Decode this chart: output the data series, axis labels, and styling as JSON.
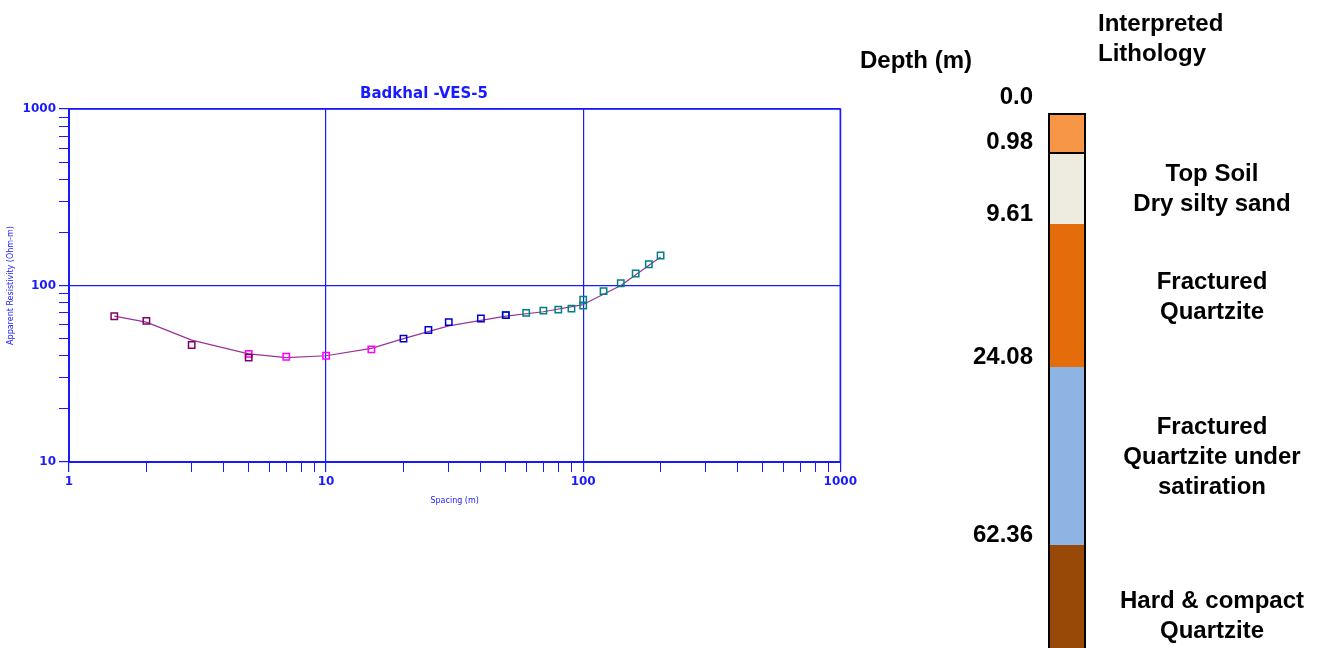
{
  "chart_data": [
    {
      "type": "scatter",
      "title": "Badkhal -VES-5",
      "xlabel": "Spacing (m)",
      "ylabel": "Apparent Resistivity (Ohm-m)",
      "log": "xy",
      "grid": true,
      "marker": "square",
      "legend": false,
      "xlim": [
        1,
        1000
      ],
      "ylim": [
        10,
        1000
      ],
      "xticks": [
        1,
        {
          "value": 2,
          "label": null
        },
        {
          "value": 3,
          "label": null
        },
        {
          "value": 4,
          "label": null
        },
        {
          "value": 5,
          "label": null
        },
        {
          "value": 6,
          "label": null
        },
        {
          "value": 7,
          "label": null
        },
        {
          "value": 8,
          "label": null
        },
        {
          "value": 9,
          "label": null
        },
        10,
        {
          "value": 20,
          "label": null
        },
        {
          "value": 30,
          "label": null
        },
        {
          "value": 40,
          "label": null
        },
        {
          "value": 50,
          "label": null
        },
        {
          "value": 60,
          "label": null
        },
        {
          "value": 70,
          "label": null
        },
        {
          "value": 80,
          "label": null
        },
        {
          "value": 90,
          "label": null
        },
        100,
        {
          "value": 200,
          "label": null
        },
        {
          "value": 300,
          "label": null
        },
        {
          "value": 400,
          "label": null
        },
        {
          "value": 500,
          "label": null
        },
        {
          "value": 600,
          "label": null
        },
        {
          "value": 700,
          "label": null
        },
        {
          "value": 800,
          "label": null
        },
        {
          "value": 900,
          "label": null
        },
        1000
      ],
      "yticks": [
        10,
        {
          "value": 20,
          "label": null
        },
        {
          "value": 30,
          "label": null
        },
        {
          "value": 40,
          "label": null
        },
        {
          "value": 50,
          "label": null
        },
        {
          "value": 60,
          "label": null
        },
        {
          "value": 70,
          "label": null
        },
        {
          "value": 80,
          "label": null
        },
        {
          "value": 90,
          "label": null
        },
        100,
        {
          "value": 200,
          "label": null
        },
        {
          "value": 300,
          "label": null
        },
        {
          "value": 400,
          "label": null
        },
        {
          "value": 500,
          "label": null
        },
        {
          "value": 600,
          "label": null
        },
        {
          "value": 700,
          "label": null
        },
        {
          "value": 800,
          "label": null
        },
        {
          "value": 900,
          "label": null
        },
        1000
      ],
      "series": [
        {
          "type": "line",
          "marker": "none",
          "color": "#993399",
          "x": [
            1.5,
            2,
            3,
            5,
            7,
            10,
            15,
            20,
            30,
            50,
            70,
            100,
            140,
            200
          ],
          "values": [
            67,
            62,
            49,
            41,
            39,
            40,
            44,
            50,
            59,
            67,
            71,
            78,
            100,
            145
          ]
        },
        {
          "color": "#800060",
          "x": [
            1.5,
            2,
            3,
            5
          ],
          "values": [
            67,
            63,
            46,
            39
          ]
        },
        {
          "color": "#ff00ff",
          "x": [
            5,
            7,
            10,
            15
          ],
          "values": [
            41,
            39.5,
            40,
            43.5
          ]
        },
        {
          "color": "#0000cc",
          "x": [
            20,
            25,
            30,
            40,
            50
          ],
          "values": [
            50,
            56,
            62,
            65,
            68
          ]
        },
        {
          "color": "#008080",
          "x": [
            50,
            60,
            70,
            80,
            90,
            100,
            100,
            120,
            140,
            160,
            180,
            200
          ],
          "values": [
            68,
            70,
            72,
            73,
            74,
            77,
            83,
            93,
            103,
            117,
            132,
            148
          ]
        }
      ]
    },
    {
      "type": "other",
      "title": "Interpreted Lithology",
      "ylabel": "Depth (m)",
      "annotations": [
        "0.0",
        "0.98",
        "9.61",
        "24.08",
        "62.36"
      ],
      "categories": [
        null,
        "Top Soil\nDry silty sand",
        "Fractured\nQuartzite",
        "Fractured\nQuartzite under\nsatiration",
        "Hard & compact\nQuartzite"
      ],
      "colors": [
        "#f79646",
        "#eeece1",
        "#e46c0a",
        "#8eb4e3",
        "#984807"
      ]
    }
  ]
}
